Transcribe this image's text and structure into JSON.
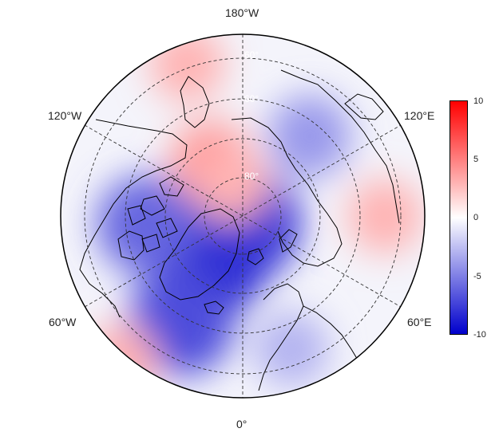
{
  "map": {
    "projection": "north-polar-stereographic",
    "longitude_labels": {
      "top": "180°W",
      "upper_left": "120°W",
      "upper_right": "120°E",
      "lower_left": "60°W",
      "lower_right": "60°E",
      "bottom": "0°"
    },
    "latitude_labels": [
      "60°",
      "60°",
      "80°"
    ],
    "anomaly_field": [
      {
        "feature": "strong-negative-greenland-arctic",
        "lon": -40,
        "lat": 74,
        "value": -9
      },
      {
        "feature": "negative-pole",
        "lon": 0,
        "lat": 88,
        "value": -8
      },
      {
        "feature": "negative-canada",
        "lon": -85,
        "lat": 62,
        "value": -6
      },
      {
        "feature": "negative-north-atlantic",
        "lon": -30,
        "lat": 55,
        "value": -7
      },
      {
        "feature": "negative-siberia",
        "lon": 140,
        "lat": 60,
        "value": -4
      },
      {
        "feature": "negative-europe",
        "lon": 20,
        "lat": 50,
        "value": -3
      },
      {
        "feature": "positive-alaska",
        "lon": -150,
        "lat": 72,
        "value": 4
      },
      {
        "feature": "positive-beaufort",
        "lon": -160,
        "lat": 80,
        "value": 3
      },
      {
        "feature": "positive-north-pacific",
        "lon": -160,
        "lat": 45,
        "value": 3
      },
      {
        "feature": "positive-central-asia",
        "lon": 90,
        "lat": 50,
        "value": 3
      },
      {
        "feature": "positive-atlantic-south",
        "lon": -40,
        "lat": 38,
        "value": 3
      }
    ]
  },
  "colorbar": {
    "ticks": [
      "10",
      "5",
      "0",
      "-5",
      "-10"
    ],
    "min": -10,
    "max": 10,
    "colors": {
      "high": "#ff0000",
      "mid": "#ffffff",
      "low": "#0000cc"
    }
  }
}
